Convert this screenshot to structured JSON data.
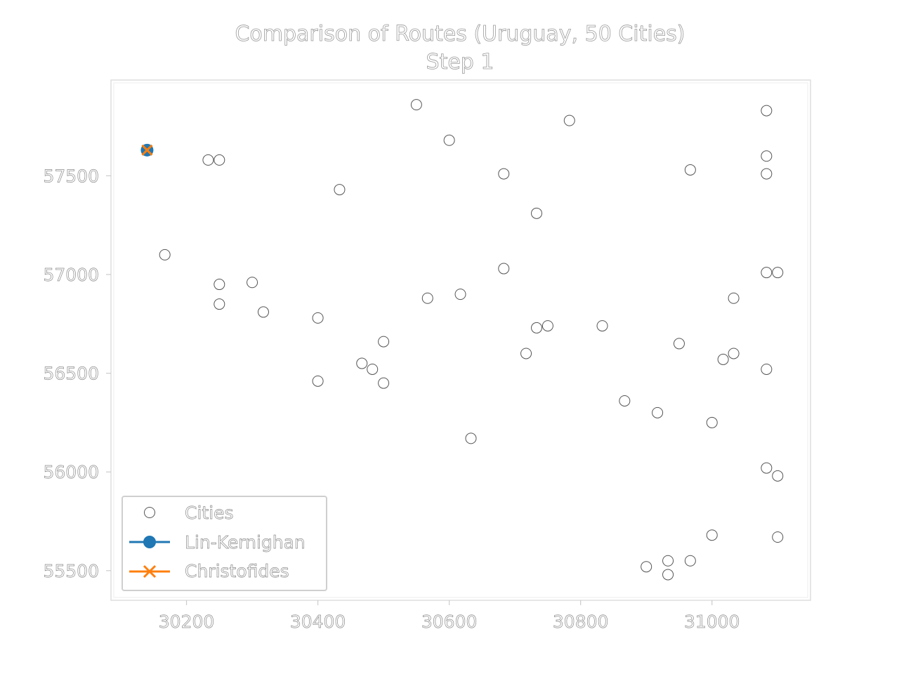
{
  "chart_data": {
    "type": "scatter",
    "title": "Comparison of Routes (Uruguay, 50 Cities)",
    "subtitle": "Step 1",
    "xlabel": "",
    "ylabel": "",
    "xlim": [
      30085,
      31150
    ],
    "ylim": [
      55350,
      57985
    ],
    "xticks": [
      30200,
      30400,
      30600,
      30800,
      31000
    ],
    "yticks": [
      55500,
      56000,
      56500,
      57000,
      57500
    ],
    "grid": false,
    "legend_position": "lower-left",
    "series": [
      {
        "name": "Cities",
        "marker": "open-circle",
        "color": "#555555",
        "points": [
          [
            30550,
            57860
          ],
          [
            30600,
            57680
          ],
          [
            30233,
            57580
          ],
          [
            30250,
            57580
          ],
          [
            30433,
            57430
          ],
          [
            30683,
            57510
          ],
          [
            30783,
            57780
          ],
          [
            30733,
            57310
          ],
          [
            30967,
            57530
          ],
          [
            31083,
            57830
          ],
          [
            31083,
            57600
          ],
          [
            31083,
            57510
          ],
          [
            30167,
            57100
          ],
          [
            30250,
            56950
          ],
          [
            30300,
            56960
          ],
          [
            30250,
            56850
          ],
          [
            30317,
            56810
          ],
          [
            30400,
            56780
          ],
          [
            30567,
            56880
          ],
          [
            30617,
            56900
          ],
          [
            30683,
            57030
          ],
          [
            30733,
            56730
          ],
          [
            30750,
            56740
          ],
          [
            30833,
            56740
          ],
          [
            31083,
            57010
          ],
          [
            31100,
            57010
          ],
          [
            31033,
            56880
          ],
          [
            30500,
            56660
          ],
          [
            30467,
            56550
          ],
          [
            30483,
            56520
          ],
          [
            30500,
            56450
          ],
          [
            30400,
            56460
          ],
          [
            30717,
            56600
          ],
          [
            30950,
            56650
          ],
          [
            31017,
            56570
          ],
          [
            31033,
            56600
          ],
          [
            31083,
            56520
          ],
          [
            30867,
            56360
          ],
          [
            30917,
            56300
          ],
          [
            31000,
            56250
          ],
          [
            30633,
            56170
          ],
          [
            31083,
            56020
          ],
          [
            31100,
            55980
          ],
          [
            31000,
            55680
          ],
          [
            31100,
            55670
          ],
          [
            30900,
            55520
          ],
          [
            30933,
            55550
          ],
          [
            30967,
            55550
          ],
          [
            30933,
            55480
          ]
        ]
      },
      {
        "name": "Lin-Kernighan",
        "marker": "filled-circle",
        "color": "#1f77b4",
        "points": [
          [
            30140,
            57630
          ]
        ]
      },
      {
        "name": "Christofides",
        "marker": "x",
        "color": "#ff7f0e",
        "points": [
          [
            30140,
            57630
          ]
        ]
      }
    ]
  }
}
